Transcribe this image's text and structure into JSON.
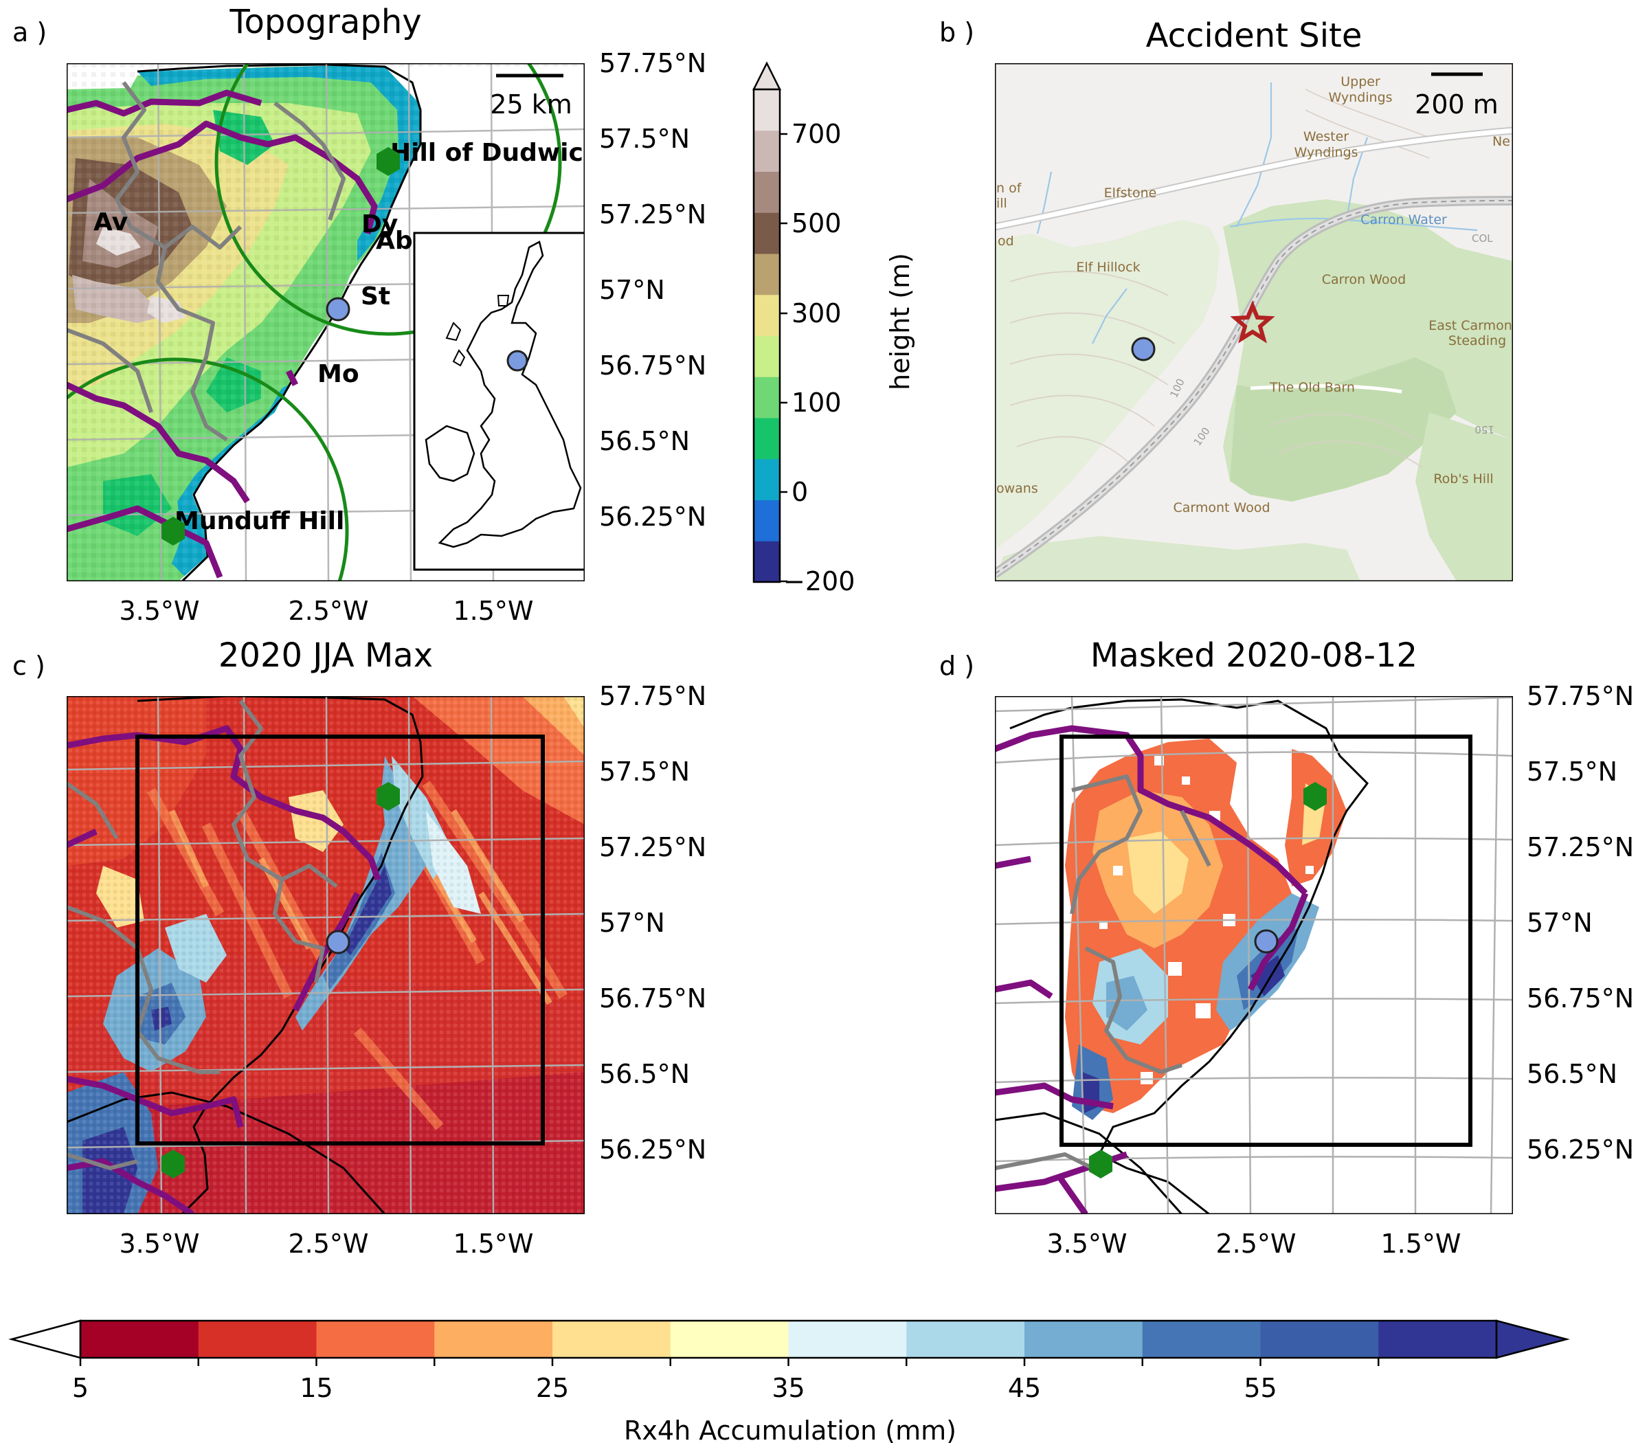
{
  "panels": {
    "a": {
      "letter": "a )",
      "title": "Topography",
      "lat_ticks": [
        "57.75°N",
        "57.5°N",
        "57.25°N",
        "57°N",
        "56.75°N",
        "56.5°N",
        "56.25°N"
      ],
      "lon_ticks": [
        "3.5°W",
        "2.5°W",
        "1.5°W"
      ],
      "scalebar": "25 km",
      "places": {
        "hill_of_dudwick": "Hill of Dudwick",
        "av": "Av",
        "dy": "Dy",
        "ab": "Ab",
        "st": "St",
        "mo": "Mo",
        "munduff_hill": "Munduff Hill"
      },
      "colorbar": {
        "label": "height (m)",
        "ticks": [
          "700",
          "500",
          "300",
          "100",
          "0",
          "−200"
        ],
        "colors": [
          "#2c2f8c",
          "#1e6fd8",
          "#10a8c8",
          "#18c46a",
          "#6fd874",
          "#c8ef88",
          "#ece28c",
          "#b9a170",
          "#7a5a48",
          "#a68a80",
          "#cbb8b4",
          "#e8e0de"
        ],
        "extend": "max"
      }
    },
    "b": {
      "letter": "b )",
      "title": "Accident Site",
      "scalebar": "200 m",
      "map_labels": {
        "upper": "Upper",
        "wyndings": "Wyndings",
        "wester": "Wester",
        "wester_wyndings": "Wyndings",
        "ne": "Ne",
        "elfstone": "Elfstone",
        "of": "n of",
        "ill": "ill",
        "od": "od",
        "elf_hillock": "Elf Hillock",
        "carron_water": "Carron Water",
        "carron_wood": "Carron Wood",
        "east_carmont": "East Carmon",
        "steading": "Steading",
        "the_old_barn": "The Old Barn",
        "rodgers": "owans",
        "robs_hill": "Rob's Hill",
        "carmont_wood": "Carmont Wood",
        "contour_100a": "100",
        "contour_100b": "100",
        "contour_150": "150",
        "contour_col": "COL"
      }
    },
    "c": {
      "letter": "c )",
      "title": "2020 JJA Max",
      "lat_ticks": [
        "57.75°N",
        "57.5°N",
        "57.25°N",
        "57°N",
        "56.75°N",
        "56.5°N",
        "56.25°N"
      ],
      "lon_ticks": [
        "3.5°W",
        "2.5°W",
        "1.5°W"
      ]
    },
    "d": {
      "letter": "d )",
      "title": "Masked 2020-08-12",
      "lat_ticks": [
        "57.75°N",
        "57.5°N",
        "57.25°N",
        "57°N",
        "56.75°N",
        "56.5°N",
        "56.25°N"
      ],
      "lon_ticks": [
        "3.5°W",
        "2.5°W",
        "1.5°W"
      ]
    }
  },
  "colorbar_main": {
    "label": "Rx4h Accumulation (mm)",
    "ticks": [
      "5",
      "15",
      "25",
      "35",
      "45",
      "55"
    ],
    "levels": [
      5,
      10,
      15,
      20,
      25,
      30,
      35,
      40,
      45,
      50,
      55,
      60
    ],
    "colors": [
      "#a50026",
      "#d73027",
      "#f46d43",
      "#fdae61",
      "#fee090",
      "#ffffbf",
      "#e0f3f8",
      "#abd9e9",
      "#74add1",
      "#4575b4",
      "#3b5ea8",
      "#313695"
    ],
    "extend": "both"
  },
  "markers": {
    "accident_color": "#7b9be0",
    "hill_color": "#158a1a",
    "star_color": "#b22222"
  }
}
